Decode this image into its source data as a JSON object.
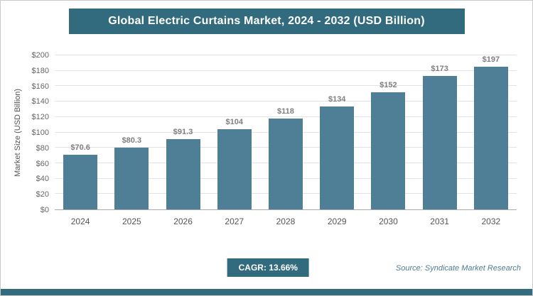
{
  "header": {
    "title": "Global Electric Curtains Market, 2024 - 2032 (USD Billion)"
  },
  "chart_data": {
    "type": "bar",
    "title": "Global Electric Curtains Market, 2024 - 2032 (USD Billion)",
    "categories": [
      "2024",
      "2025",
      "2026",
      "2027",
      "2028",
      "2029",
      "2030",
      "2031",
      "2032"
    ],
    "values": [
      70.6,
      80.3,
      91.3,
      104,
      118,
      134,
      152,
      173,
      197
    ],
    "data_labels": [
      "$70.6",
      "$80.3",
      "$91.3",
      "$104",
      "$118",
      "$134",
      "$152",
      "$173",
      "$197"
    ],
    "xlabel": "",
    "ylabel": "Market Size (USD Billion)",
    "ylim": [
      0,
      200
    ],
    "ytick_step": 20,
    "ytick_prefix": "$",
    "grid": true,
    "legend": "none",
    "bar_color": "#4e7f96"
  },
  "footer": {
    "cagr_label": "CAGR: 13.66%",
    "source": "Source: Syndicate Market Research"
  },
  "colors": {
    "accent": "#336b7e",
    "bar": "#4e7f96",
    "value_label": "#7f7f7f",
    "grid": "#e2e2e2"
  }
}
